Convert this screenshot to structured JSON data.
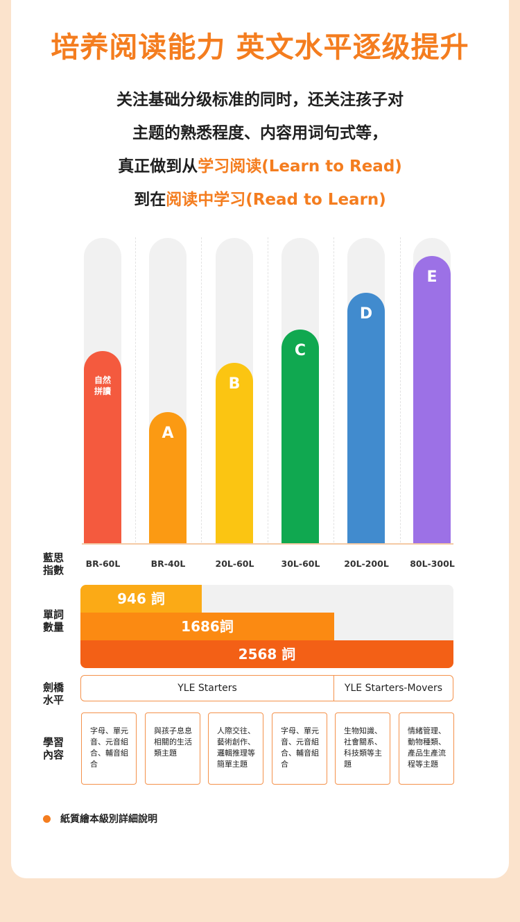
{
  "headline": "培养阅读能力 英文水平逐级提升",
  "intro": {
    "line1": "关注基础分级标准的同时，还关注孩子对",
    "line2": "主题的熟悉程度、内容用词句式等，",
    "line3_prefix": "真正做到从",
    "line3_highlight": "学习阅读(Learn to Read)",
    "line4_prefix": "到在",
    "line4_highlight": "阅读中学习(Read to Learn)"
  },
  "chart_data": {
    "type": "bar",
    "categories": [
      "自然拼讀",
      "A",
      "B",
      "C",
      "D",
      "E"
    ],
    "values": [
      63,
      43,
      59,
      70,
      82,
      94
    ],
    "ylim": [
      0,
      100
    ],
    "colors": [
      "#f45a3e",
      "#fb9a13",
      "#fbc512",
      "#10a850",
      "#418bce",
      "#9c71e6"
    ]
  },
  "bars": [
    {
      "label": "",
      "note_line1": "自然",
      "note_line2": "拼讀"
    },
    {
      "label": "A"
    },
    {
      "label": "B"
    },
    {
      "label": "C"
    },
    {
      "label": "D"
    },
    {
      "label": "E"
    }
  ],
  "rows": {
    "lexile_label": "藍思指數",
    "words_label": "單詞數量",
    "level_label": "劍橋水平",
    "content_label": "學習內容"
  },
  "lexile": [
    "BR-60L",
    "BR-40L",
    "20L-60L",
    "30L-60L",
    "20L-200L",
    "80L-300L"
  ],
  "words": [
    {
      "text": "946 詞",
      "color": "#fbaa16"
    },
    {
      "text": "1686詞",
      "color": "#fb8a12"
    },
    {
      "text": "2568 詞",
      "color": "#f36016"
    }
  ],
  "yle": [
    "YLE Starters",
    "YLE Starters-Movers"
  ],
  "content": [
    "字母、單元音、元音組合、輔音組合",
    "與孩子息息相關的生活類主題",
    "人際交往、藝術創作、邏輯推理等簡單主題",
    "字母、單元音、元音組合、輔音組合",
    "生物知識、社會關系、科技類等主題",
    "情緒管理、動物種類、產品生產流程等主題"
  ],
  "footnote": "紙質繪本級別詳細說明"
}
